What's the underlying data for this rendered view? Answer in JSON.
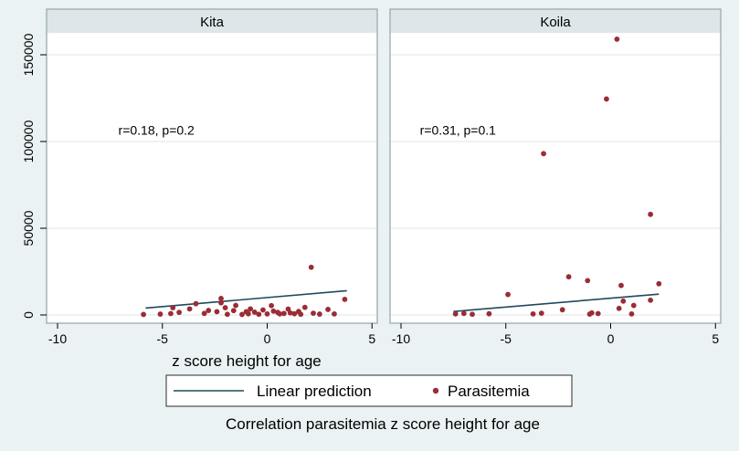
{
  "chart_data": {
    "type": "scatter",
    "title": "",
    "caption": "Correlation parasitemia z score height for age",
    "xlabel": "z score height for age",
    "ylabel": "",
    "xlim": [
      -10,
      5
    ],
    "ylim": [
      0,
      160000
    ],
    "x_ticks": [
      -10,
      -5,
      0,
      5
    ],
    "y_ticks": [
      0,
      50000,
      100000,
      150000
    ],
    "grid": "horizontal",
    "legend_position": "bottom",
    "colors": {
      "points": "#9b2c35",
      "line": "#1e4a5c",
      "grid": "#dde6e8",
      "background": "#eaf2f3",
      "panel": "#ffffff",
      "header": "#dde6e8"
    },
    "legend": [
      {
        "key": "line",
        "label": "Linear prediction"
      },
      {
        "key": "points",
        "label": "Parasitemia"
      }
    ],
    "panels": [
      {
        "title": "Kita",
        "annotation": "r=0.18, p=0.2",
        "annotation_at": [
          -7.1,
          104000
        ],
        "fit_line": {
          "x": [
            -5.8,
            3.8
          ],
          "y": [
            4000,
            14000
          ]
        },
        "points": [
          [
            -5.9,
            300
          ],
          [
            -5.1,
            500
          ],
          [
            -4.6,
            800
          ],
          [
            -4.5,
            4200
          ],
          [
            -4.2,
            1500
          ],
          [
            -3.7,
            3500
          ],
          [
            -3.4,
            6500
          ],
          [
            -3.0,
            900
          ],
          [
            -2.8,
            2600
          ],
          [
            -2.4,
            1900
          ],
          [
            -2.2,
            9500
          ],
          [
            -2.2,
            7000
          ],
          [
            -2.0,
            4200
          ],
          [
            -1.9,
            400
          ],
          [
            -1.6,
            2500
          ],
          [
            -1.5,
            5500
          ],
          [
            -1.2,
            300
          ],
          [
            -1.0,
            1900
          ],
          [
            -0.8,
            3500
          ],
          [
            -0.6,
            1600
          ],
          [
            -0.4,
            400
          ],
          [
            -0.2,
            2900
          ],
          [
            0.0,
            600
          ],
          [
            0.2,
            5400
          ],
          [
            0.3,
            2200
          ],
          [
            0.5,
            1500
          ],
          [
            0.8,
            900
          ],
          [
            1.0,
            3400
          ],
          [
            1.3,
            700
          ],
          [
            1.5,
            2000
          ],
          [
            1.6,
            400
          ],
          [
            1.8,
            4400
          ],
          [
            2.1,
            27500
          ],
          [
            2.2,
            1000
          ],
          [
            2.5,
            500
          ],
          [
            2.9,
            3200
          ],
          [
            3.2,
            600
          ],
          [
            3.7,
            9000
          ],
          [
            0.6,
            600
          ],
          [
            -0.9,
            700
          ],
          [
            1.1,
            1200
          ]
        ]
      },
      {
        "title": "Koila",
        "annotation": "r=0.31, p=0.1",
        "annotation_at": [
          -9.1,
          104000
        ],
        "fit_line": {
          "x": [
            -7.5,
            2.3
          ],
          "y": [
            2000,
            12000
          ]
        },
        "points": [
          [
            -7.4,
            600
          ],
          [
            -7.0,
            900
          ],
          [
            -6.6,
            400
          ],
          [
            -5.8,
            700
          ],
          [
            -4.9,
            11800
          ],
          [
            -3.7,
            600
          ],
          [
            -3.3,
            1000
          ],
          [
            -3.2,
            93000
          ],
          [
            -2.3,
            3000
          ],
          [
            -2.0,
            22000
          ],
          [
            -1.1,
            19800
          ],
          [
            -0.9,
            1200
          ],
          [
            -0.6,
            800
          ],
          [
            -0.2,
            124500
          ],
          [
            0.3,
            159000
          ],
          [
            0.4,
            3800
          ],
          [
            0.5,
            17000
          ],
          [
            0.6,
            8000
          ],
          [
            1.0,
            600
          ],
          [
            1.1,
            5500
          ],
          [
            1.9,
            58000
          ],
          [
            1.9,
            8500
          ],
          [
            2.3,
            18000
          ],
          [
            -1.0,
            500
          ]
        ]
      }
    ]
  }
}
